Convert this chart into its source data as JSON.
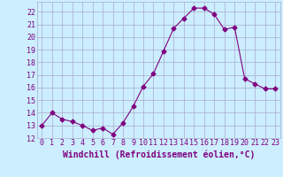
{
  "x": [
    0,
    1,
    2,
    3,
    4,
    5,
    6,
    7,
    8,
    9,
    10,
    11,
    12,
    13,
    14,
    15,
    16,
    17,
    18,
    19,
    20,
    21,
    22,
    23
  ],
  "y": [
    13.0,
    14.0,
    13.5,
    13.3,
    13.0,
    12.6,
    12.8,
    12.3,
    13.2,
    14.5,
    16.1,
    17.1,
    18.9,
    20.7,
    21.5,
    22.3,
    22.3,
    21.8,
    20.6,
    20.8,
    16.7,
    16.3,
    15.9,
    15.9
  ],
  "line_color": "#800080",
  "marker": "D",
  "marker_size": 2.5,
  "bg_color": "#cceeff",
  "grid_color": "#aaaacc",
  "xlabel": "Windchill (Refroidissement éolien,°C)",
  "xlabel_color": "#800080",
  "tick_color": "#800080",
  "ylim": [
    12,
    22.8
  ],
  "xlim": [
    -0.5,
    23.5
  ],
  "yticks": [
    12,
    13,
    14,
    15,
    16,
    17,
    18,
    19,
    20,
    21,
    22
  ],
  "xticks": [
    0,
    1,
    2,
    3,
    4,
    5,
    6,
    7,
    8,
    9,
    10,
    11,
    12,
    13,
    14,
    15,
    16,
    17,
    18,
    19,
    20,
    21,
    22,
    23
  ],
  "tick_fontsize": 6,
  "xlabel_fontsize": 7
}
